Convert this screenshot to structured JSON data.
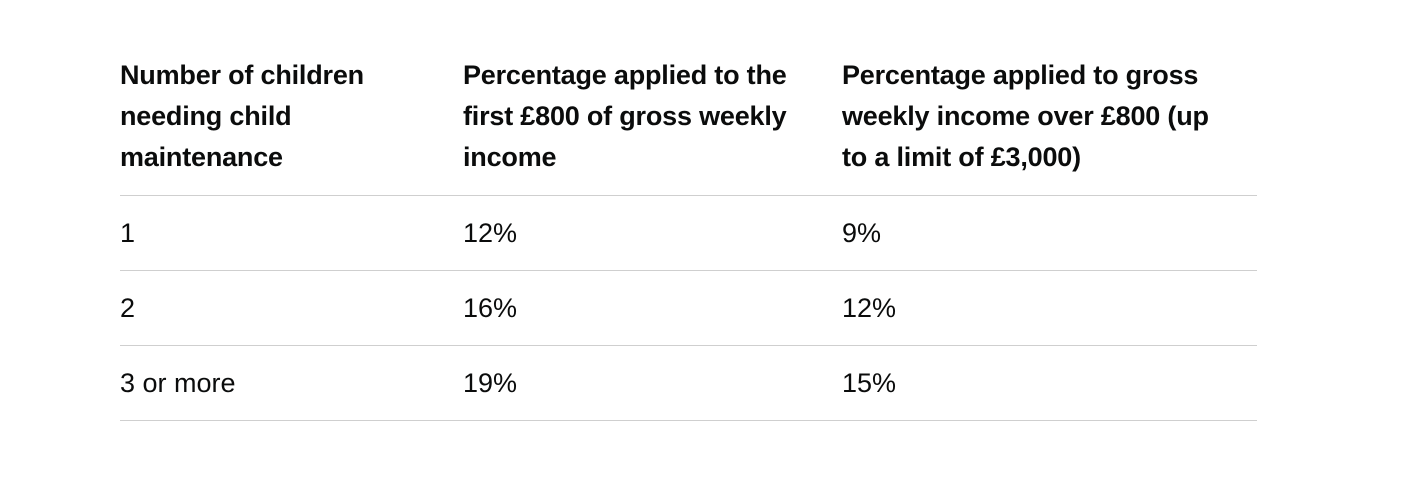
{
  "table": {
    "headers": [
      "Number of children needing child maintenance",
      "Percentage applied to the first £800 of gross weekly income",
      "Percentage applied to gross weekly income over £800 (up to a limit of £3,000)"
    ],
    "rows": [
      [
        "1",
        "12%",
        "9%"
      ],
      [
        "2",
        "16%",
        "12%"
      ],
      [
        "3 or more",
        "19%",
        "15%"
      ]
    ]
  }
}
